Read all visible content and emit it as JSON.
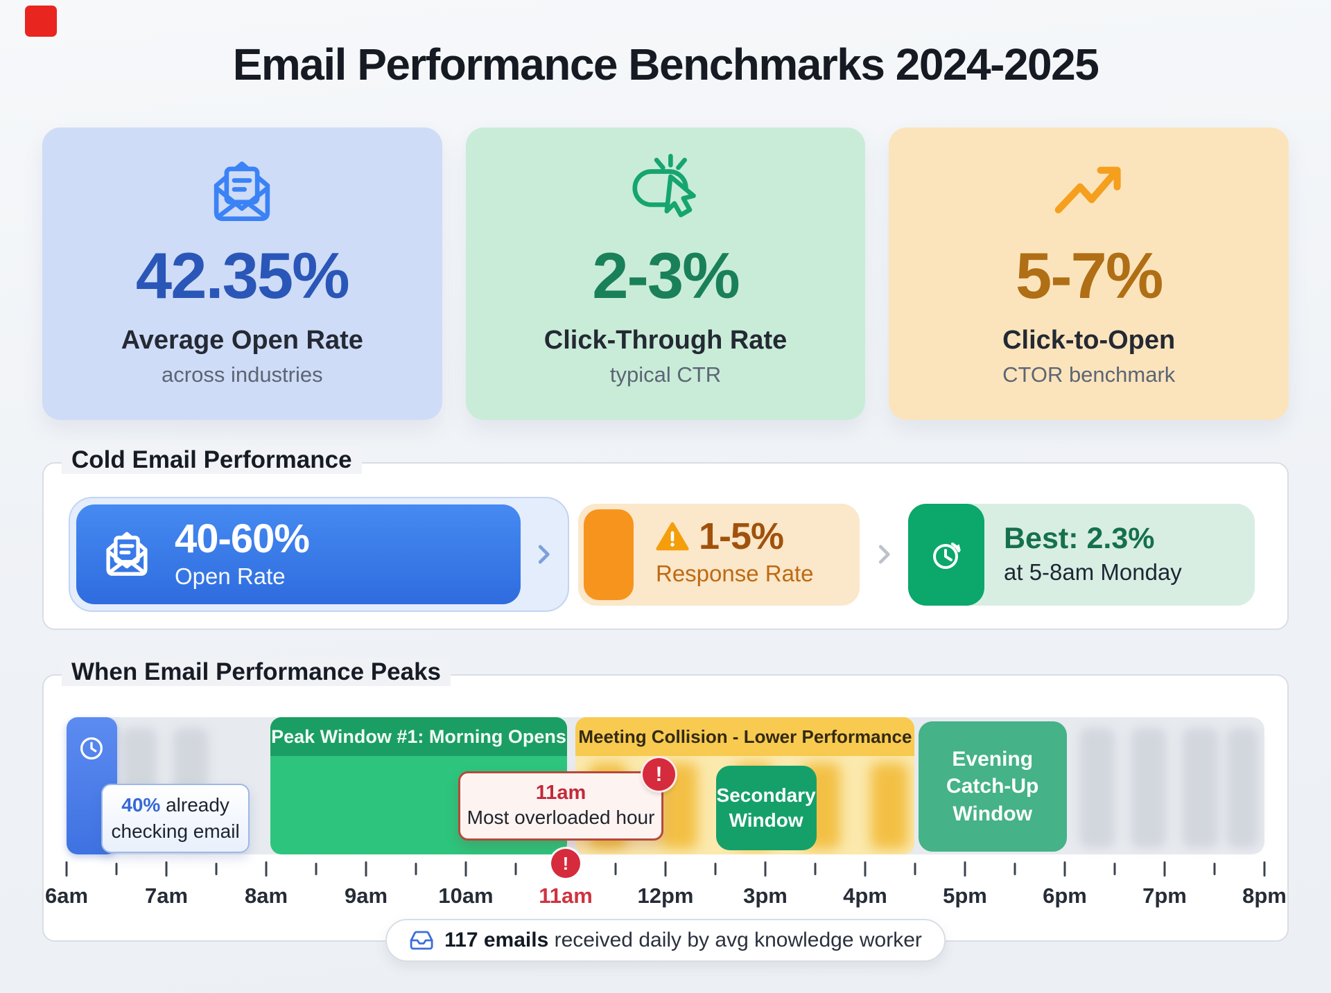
{
  "page": {
    "title": "Email Performance Benchmarks 2024-2025"
  },
  "stat_cards": [
    {
      "value": "42.35%",
      "label": "Average Open Rate",
      "sublabel": "across industries"
    },
    {
      "value": "2-3%",
      "label": "Click-Through Rate",
      "sublabel": "typical CTR"
    },
    {
      "value": "5-7%",
      "label": "Click-to-Open",
      "sublabel": "CTOR benchmark"
    }
  ],
  "cold_email": {
    "section_title": "Cold Email Performance",
    "open_rate": {
      "value": "40-60%",
      "label": "Open Rate"
    },
    "response_rate": {
      "value": "1-5%",
      "label": "Response Rate"
    },
    "best_time": {
      "value": "Best: 2.3%",
      "label": "at 5-8am Monday"
    }
  },
  "peaks": {
    "section_title": "When Email Performance Peaks",
    "checking_callout": {
      "value": "40%",
      "text": "already checking email"
    },
    "peak_window": "Peak Window #1: Morning Opens",
    "collision_window": "Meeting Collision - Lower Performance",
    "overload_callout": {
      "time": "11am",
      "text": "Most overloaded hour",
      "badge": "!"
    },
    "secondary_window": "Secondary Window",
    "evening_window": "Evening Catch-Up Window",
    "axis_badge": "!",
    "timeline_labels": [
      "6am",
      "7am",
      "8am",
      "9am",
      "10am",
      "11am",
      "12pm",
      "3pm",
      "4pm",
      "5pm",
      "6pm",
      "7pm",
      "8pm"
    ],
    "highlight_label": "11am",
    "footer": {
      "value": "117 emails",
      "text": "received daily by avg knowledge worker"
    }
  },
  "colors": {
    "card_blue_bg": "#cfdcf7",
    "card_green_bg": "#c9ecd9",
    "card_orange_bg": "#fbe4bc",
    "stat_blue": "#2a56b8",
    "stat_green": "#1a8059",
    "stat_orange": "#b06e15",
    "open_rate_blue": "#3579e8",
    "response_orange": "#f7941e",
    "best_green": "#0ba76b",
    "peak_green": "#2dc57d",
    "peak_green_dark": "#1b9e63",
    "collision_yellow": "#f8ca50",
    "collision_yellow_light": "#fbe9ad",
    "alert_red": "#d52b3c",
    "track_gray": "#e7eaef"
  },
  "chart_data": {
    "type": "timeline",
    "title": "When Email Performance Peaks",
    "x_axis_labels": [
      "6am",
      "7am",
      "8am",
      "9am",
      "10am",
      "11am",
      "12pm",
      "3pm",
      "4pm",
      "5pm",
      "6pm",
      "7pm",
      "8pm"
    ],
    "highlighted_hour": "11am",
    "windows": [
      {
        "label": "40% already checking email",
        "from": "6am",
        "to": "6:30am",
        "style": "blue-marker"
      },
      {
        "label": "Peak Window #1: Morning Opens",
        "from": "8am",
        "to": "11am",
        "style": "green-window"
      },
      {
        "label": "Meeting Collision - Lower Performance",
        "from": "11am",
        "to": "4:30pm",
        "style": "yellow-window"
      },
      {
        "label": "11am Most overloaded hour",
        "at": "11am",
        "style": "red-alert"
      },
      {
        "label": "Secondary Window",
        "from": "12:30pm",
        "to": "3:30pm",
        "style": "green-window"
      },
      {
        "label": "Evening Catch-Up Window",
        "from": "4:30pm",
        "to": "6pm",
        "style": "green-window"
      }
    ],
    "footnote": "117 emails received daily by avg knowledge worker",
    "stats": [
      {
        "metric": "Average Open Rate",
        "value": "42.35%",
        "note": "across industries"
      },
      {
        "metric": "Click-Through Rate",
        "value": "2-3%",
        "note": "typical CTR"
      },
      {
        "metric": "Click-to-Open",
        "value": "5-7%",
        "note": "CTOR benchmark"
      },
      {
        "metric": "Cold Email Open Rate",
        "value": "40-60%"
      },
      {
        "metric": "Cold Email Response Rate",
        "value": "1-5%"
      },
      {
        "metric": "Cold Email Best Response",
        "value": "2.3% at 5-8am Monday"
      }
    ]
  }
}
